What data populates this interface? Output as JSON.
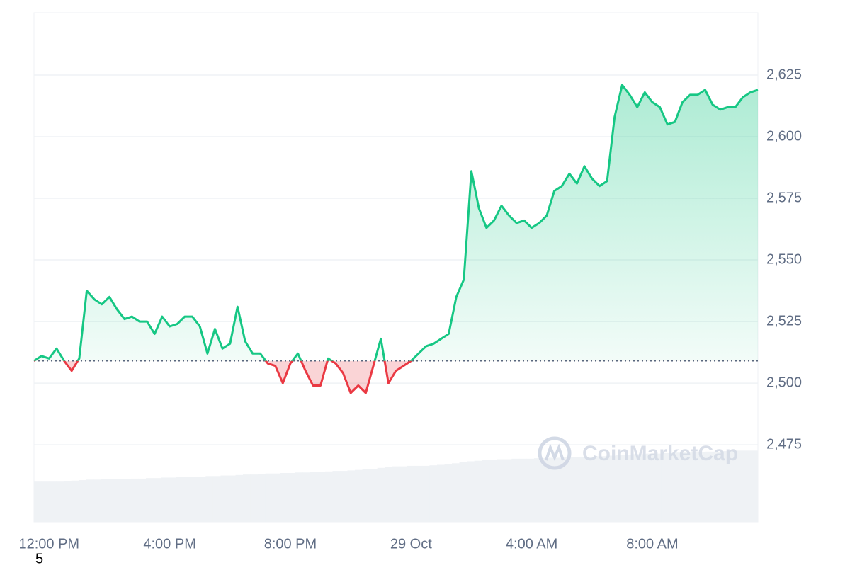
{
  "chart_data": {
    "type": "line",
    "x": [
      -0.5,
      -0.25,
      0,
      0.25,
      0.5,
      0.75,
      1,
      1.25,
      1.5,
      1.75,
      2,
      2.25,
      2.5,
      2.75,
      3,
      3.25,
      3.5,
      3.75,
      4,
      4.25,
      4.5,
      4.75,
      5,
      5.25,
      5.5,
      5.75,
      6,
      6.25,
      6.5,
      6.75,
      7,
      7.25,
      7.5,
      7.75,
      8,
      8.25,
      8.5,
      8.75,
      9,
      9.25,
      9.5,
      9.75,
      10,
      10.25,
      10.5,
      10.75,
      11,
      11.25,
      11.5,
      11.75,
      12,
      12.25,
      12.5,
      12.75,
      13,
      13.25,
      13.5,
      13.75,
      14,
      14.25,
      14.5,
      14.75,
      15,
      15.25,
      15.5,
      15.75,
      16,
      16.25,
      16.5,
      16.75,
      17,
      17.25,
      17.5,
      17.75,
      18,
      18.25,
      18.5,
      18.75,
      19,
      19.25,
      19.5,
      19.75,
      20,
      20.25,
      20.5,
      20.75,
      21,
      21.25,
      21.5,
      21.75,
      22,
      22.25,
      22.5,
      22.75,
      23,
      23.25,
      23.5
    ],
    "values": [
      2509,
      2511,
      2510,
      2514,
      2509,
      2505,
      2510,
      2537.5,
      2534,
      2532,
      2535,
      2530,
      2526,
      2527,
      2525,
      2525,
      2520,
      2527,
      2523,
      2524,
      2527,
      2527,
      2523,
      2512,
      2522,
      2514,
      2516,
      2531,
      2517,
      2512,
      2512,
      2508,
      2507,
      2500,
      2508,
      2512,
      2505,
      2499,
      2499,
      2510,
      2508,
      2504,
      2496,
      2499,
      2496,
      2507,
      2518,
      2500,
      2505,
      2507,
      2509,
      2512,
      2515,
      2516,
      2518,
      2520,
      2535,
      2542,
      2586,
      2571,
      2563,
      2566,
      2572,
      2568,
      2565,
      2566,
      2563,
      2565,
      2568,
      2578,
      2580,
      2585,
      2581,
      2588,
      2583,
      2580,
      2582,
      2608,
      2621,
      2617,
      2612,
      2618,
      2614,
      2612,
      2605,
      2606,
      2614,
      2617,
      2617,
      2619,
      2613,
      2611,
      2612,
      2612,
      2616,
      2618,
      2619
    ],
    "volume": [
      7.9,
      7.9,
      7.9,
      7.9,
      8.0,
      8.1,
      8.2,
      8.3,
      8.3,
      8.4,
      8.4,
      8.4,
      8.4,
      8.5,
      8.5,
      8.6,
      8.6,
      8.7,
      8.7,
      8.8,
      8.8,
      8.8,
      8.9,
      9.0,
      9.0,
      9.1,
      9.1,
      9.2,
      9.3,
      9.3,
      9.4,
      9.5,
      9.5,
      9.6,
      9.6,
      9.7,
      9.7,
      9.8,
      9.8,
      9.9,
      10.0,
      10.0,
      10.1,
      10.2,
      10.3,
      10.4,
      10.6,
      10.8,
      10.9,
      10.9,
      11.0,
      11.0,
      11.0,
      11.1,
      11.2,
      11.3,
      11.5,
      11.7,
      11.9,
      12.0,
      12.1,
      12.2,
      12.3,
      12.3,
      12.4,
      12.4,
      12.4,
      12.5,
      12.5,
      12.6,
      12.6,
      12.7,
      12.7,
      12.8,
      12.8,
      12.9,
      12.9,
      13.0,
      13.1,
      13.2,
      13.3,
      13.3,
      13.4,
      13.4,
      13.5,
      13.5,
      13.6,
      13.6,
      13.7,
      13.7,
      13.8,
      13.8,
      13.9,
      13.9,
      14.0,
      14.0,
      14.0
    ],
    "volume_ylim": [
      0,
      100
    ],
    "baseline": 2509,
    "color_up": "#16c784",
    "color_down": "#ea3943",
    "volume_color": "#eff2f5",
    "xlim": [
      -0.5,
      23.5
    ],
    "xticks": [
      {
        "value": 0,
        "label": "12:00 PM"
      },
      {
        "value": 4,
        "label": "4:00 PM"
      },
      {
        "value": 8,
        "label": "8:00 PM"
      },
      {
        "value": 12,
        "label": "29 Oct"
      },
      {
        "value": 16,
        "label": "4:00 AM"
      },
      {
        "value": 20,
        "label": "8:00 AM"
      }
    ],
    "ylim": [
      2443.7,
      2650.3
    ],
    "yticks": [
      {
        "value": 2475,
        "label": "2,475"
      },
      {
        "value": 2500,
        "label": "2,500"
      },
      {
        "value": 2525,
        "label": "2,525"
      },
      {
        "value": 2550,
        "label": "2,550"
      },
      {
        "value": 2575,
        "label": "2,575"
      },
      {
        "value": 2600,
        "label": "2,600"
      },
      {
        "value": 2625,
        "label": "2,625"
      }
    ],
    "grid": true,
    "watermark": "CoinMarketCap"
  },
  "page_label": "5"
}
